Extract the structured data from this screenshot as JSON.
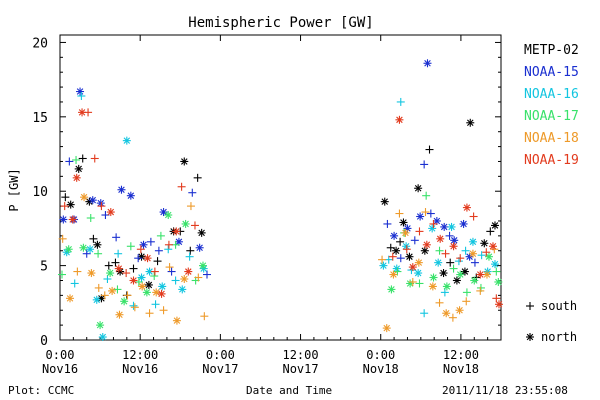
{
  "chart_data": {
    "type": "scatter",
    "title": "Hemispheric Power [GW]",
    "ylabel": "P [GW]",
    "xlabel": "Date and Time",
    "x_unit": "hours from 2011-11-16 00:00",
    "xlim": [
      0,
      66
    ],
    "ylim": [
      0,
      20.5
    ],
    "yticks": [
      0,
      5,
      10,
      15,
      20
    ],
    "xticks": [
      {
        "x": 0,
        "label": "0:00",
        "label2": "Nov16"
      },
      {
        "x": 12,
        "label": "12:00",
        "label2": "Nov16"
      },
      {
        "x": 24,
        "label": "0:00",
        "label2": "Nov17"
      },
      {
        "x": 36,
        "label": "12:00",
        "label2": "Nov17"
      },
      {
        "x": 48,
        "label": "0:00",
        "label2": "Nov18"
      },
      {
        "x": 60,
        "label": "12:00",
        "label2": "Nov18"
      }
    ],
    "grid": false,
    "legend_position": "right",
    "symbol_legend": [
      {
        "marker": "+",
        "label": "south"
      },
      {
        "marker": "*",
        "label": "north"
      }
    ],
    "series": [
      {
        "name": "METP-02",
        "color": "#000000",
        "points": [
          [
            0.8,
            9.6,
            "+"
          ],
          [
            1.6,
            9.1,
            "*"
          ],
          [
            2.8,
            11.5,
            "*"
          ],
          [
            3.4,
            12.2,
            "+"
          ],
          [
            4.4,
            9.3,
            "*"
          ],
          [
            5.0,
            6.8,
            "+"
          ],
          [
            5.6,
            6.4,
            "*"
          ],
          [
            6.2,
            2.8,
            "*"
          ],
          [
            7.3,
            5.0,
            "+"
          ],
          [
            8.3,
            5.2,
            "+"
          ],
          [
            9.0,
            4.6,
            "*"
          ],
          [
            10.0,
            3.0,
            "+"
          ],
          [
            11.0,
            4.8,
            "+"
          ],
          [
            12.2,
            5.6,
            "*"
          ],
          [
            13.3,
            3.7,
            "*"
          ],
          [
            14.6,
            5.3,
            "+"
          ],
          [
            17.0,
            7.3,
            "*"
          ],
          [
            18.0,
            7.3,
            "+"
          ],
          [
            18.6,
            12.0,
            "*"
          ],
          [
            19.5,
            6.0,
            "+"
          ],
          [
            20.6,
            10.9,
            "+"
          ],
          [
            21.2,
            7.2,
            "*"
          ],
          [
            48.6,
            9.3,
            "*"
          ],
          [
            49.5,
            6.2,
            "+"
          ],
          [
            50.3,
            6.0,
            "*"
          ],
          [
            50.9,
            6.6,
            "+"
          ],
          [
            51.4,
            7.9,
            "*"
          ],
          [
            52.3,
            5.6,
            "*"
          ],
          [
            53.6,
            10.2,
            "*"
          ],
          [
            54.6,
            6.0,
            "*"
          ],
          [
            55.3,
            12.8,
            "+"
          ],
          [
            57.4,
            4.5,
            "*"
          ],
          [
            58.4,
            5.2,
            "+"
          ],
          [
            59.4,
            4.0,
            "*"
          ],
          [
            60.6,
            4.6,
            "*"
          ],
          [
            61.4,
            14.6,
            "*"
          ],
          [
            62.3,
            4.2,
            "+"
          ],
          [
            63.5,
            6.5,
            "*"
          ],
          [
            64.4,
            7.3,
            "+"
          ],
          [
            65.1,
            7.7,
            "*"
          ]
        ]
      },
      {
        "name": "NOAA-15",
        "color": "#1a2fd0",
        "points": [
          [
            0.5,
            8.1,
            "*"
          ],
          [
            1.4,
            12.0,
            "+"
          ],
          [
            2.1,
            8.1,
            "*"
          ],
          [
            3.0,
            16.7,
            "*"
          ],
          [
            4.0,
            5.8,
            "+"
          ],
          [
            4.9,
            9.4,
            "*"
          ],
          [
            6.1,
            9.2,
            "*"
          ],
          [
            6.8,
            8.4,
            "+"
          ],
          [
            8.4,
            6.9,
            "+"
          ],
          [
            9.2,
            10.1,
            "*"
          ],
          [
            10.6,
            9.7,
            "*"
          ],
          [
            11.7,
            5.5,
            "+"
          ],
          [
            12.5,
            6.4,
            "*"
          ],
          [
            13.6,
            6.6,
            "+"
          ],
          [
            14.8,
            6.0,
            "+"
          ],
          [
            15.5,
            8.6,
            "*"
          ],
          [
            16.7,
            4.6,
            "+"
          ],
          [
            17.8,
            6.6,
            "*"
          ],
          [
            19.8,
            9.9,
            "+"
          ],
          [
            20.9,
            6.2,
            "*"
          ],
          [
            22.0,
            4.4,
            "+"
          ],
          [
            49.0,
            7.8,
            "+"
          ],
          [
            50.0,
            7.0,
            "*"
          ],
          [
            51.0,
            5.5,
            "+"
          ],
          [
            52.0,
            7.5,
            "*"
          ],
          [
            53.1,
            6.7,
            "+"
          ],
          [
            53.9,
            8.3,
            "*"
          ],
          [
            54.5,
            11.8,
            "+"
          ],
          [
            55.0,
            18.6,
            "*"
          ],
          [
            55.5,
            8.5,
            "+"
          ],
          [
            56.4,
            8.0,
            "*"
          ],
          [
            57.5,
            7.6,
            "*"
          ],
          [
            58.3,
            7.0,
            "+"
          ],
          [
            59.0,
            6.7,
            "*"
          ],
          [
            60.4,
            7.8,
            "*"
          ],
          [
            61.3,
            5.6,
            "*"
          ],
          [
            62.1,
            5.2,
            "+"
          ]
        ]
      },
      {
        "name": "NOAA-16",
        "color": "#12c5e0",
        "points": [
          [
            1.0,
            5.9,
            "*"
          ],
          [
            2.2,
            3.8,
            "+"
          ],
          [
            3.2,
            16.4,
            "+"
          ],
          [
            4.5,
            6.1,
            "*"
          ],
          [
            5.5,
            2.7,
            "*"
          ],
          [
            6.4,
            0.2,
            "*"
          ],
          [
            7.1,
            4.1,
            "+"
          ],
          [
            8.7,
            5.8,
            "+"
          ],
          [
            10.0,
            13.4,
            "*"
          ],
          [
            11.0,
            2.3,
            "+"
          ],
          [
            12.2,
            4.2,
            "*"
          ],
          [
            13.4,
            4.6,
            "*"
          ],
          [
            14.3,
            2.4,
            "+"
          ],
          [
            15.3,
            3.6,
            "*"
          ],
          [
            16.2,
            6.1,
            "+"
          ],
          [
            17.3,
            4.0,
            "+"
          ],
          [
            18.3,
            3.4,
            "*"
          ],
          [
            19.4,
            5.6,
            "+"
          ],
          [
            21.5,
            4.8,
            "*"
          ],
          [
            48.4,
            5.0,
            "*"
          ],
          [
            49.2,
            5.4,
            "+"
          ],
          [
            50.4,
            4.8,
            "*"
          ],
          [
            51.0,
            16.0,
            "+"
          ],
          [
            51.8,
            6.3,
            "*"
          ],
          [
            52.6,
            4.7,
            "+"
          ],
          [
            53.6,
            4.5,
            "*"
          ],
          [
            54.5,
            1.8,
            "+"
          ],
          [
            55.7,
            7.5,
            "*"
          ],
          [
            56.6,
            5.2,
            "*"
          ],
          [
            57.6,
            3.2,
            "+"
          ],
          [
            58.6,
            7.6,
            "*"
          ],
          [
            59.7,
            5.3,
            "+"
          ],
          [
            60.7,
            6.0,
            "+"
          ],
          [
            61.8,
            6.6,
            "*"
          ],
          [
            63.1,
            5.7,
            "+"
          ],
          [
            64.0,
            4.6,
            "*"
          ],
          [
            65.1,
            5.1,
            "*"
          ]
        ]
      },
      {
        "name": "NOAA-17",
        "color": "#38e26a",
        "points": [
          [
            0.3,
            4.4,
            "+"
          ],
          [
            1.3,
            6.1,
            "*"
          ],
          [
            2.4,
            12.1,
            "+"
          ],
          [
            3.5,
            6.2,
            "*"
          ],
          [
            4.6,
            8.2,
            "+"
          ],
          [
            5.7,
            5.8,
            "+"
          ],
          [
            6.0,
            1.0,
            "*"
          ],
          [
            7.5,
            4.5,
            "*"
          ],
          [
            8.6,
            3.4,
            "+"
          ],
          [
            9.6,
            2.6,
            "*"
          ],
          [
            10.6,
            6.3,
            "+"
          ],
          [
            11.8,
            3.9,
            "+"
          ],
          [
            13.0,
            3.2,
            "*"
          ],
          [
            14.1,
            4.3,
            "+"
          ],
          [
            15.1,
            7.0,
            "+"
          ],
          [
            16.2,
            8.4,
            "*"
          ],
          [
            17.3,
            6.4,
            "+"
          ],
          [
            18.8,
            7.8,
            "*"
          ],
          [
            20.3,
            4.0,
            "+"
          ],
          [
            21.4,
            5.0,
            "*"
          ],
          [
            49.6,
            3.4,
            "*"
          ],
          [
            50.5,
            4.6,
            "+"
          ],
          [
            51.5,
            7.2,
            "+"
          ],
          [
            52.4,
            3.8,
            "*"
          ],
          [
            53.8,
            3.8,
            "+"
          ],
          [
            54.8,
            9.7,
            "+"
          ],
          [
            55.9,
            4.2,
            "*"
          ],
          [
            56.8,
            6.0,
            "+"
          ],
          [
            57.9,
            3.6,
            "*"
          ],
          [
            58.9,
            4.8,
            "+"
          ],
          [
            59.9,
            4.4,
            "*"
          ],
          [
            60.9,
            3.2,
            "+"
          ],
          [
            62.0,
            4.0,
            "*"
          ],
          [
            63.0,
            3.5,
            "+"
          ],
          [
            64.2,
            5.6,
            "*"
          ],
          [
            65.3,
            4.6,
            "+"
          ],
          [
            65.6,
            3.9,
            "*"
          ]
        ]
      },
      {
        "name": "NOAA-18",
        "color": "#ee9a2a",
        "points": [
          [
            0.4,
            6.8,
            "+"
          ],
          [
            1.5,
            2.8,
            "*"
          ],
          [
            2.6,
            4.6,
            "+"
          ],
          [
            3.6,
            9.6,
            "*"
          ],
          [
            4.7,
            4.5,
            "*"
          ],
          [
            5.8,
            3.5,
            "+"
          ],
          [
            6.7,
            3.0,
            "+"
          ],
          [
            7.8,
            3.3,
            "*"
          ],
          [
            8.9,
            1.7,
            "*"
          ],
          [
            10.1,
            3.0,
            "+"
          ],
          [
            11.2,
            2.2,
            "+"
          ],
          [
            12.3,
            3.6,
            "*"
          ],
          [
            13.4,
            1.8,
            "+"
          ],
          [
            14.4,
            3.2,
            "*"
          ],
          [
            15.5,
            2.0,
            "+"
          ],
          [
            16.4,
            4.9,
            "+"
          ],
          [
            17.5,
            1.3,
            "*"
          ],
          [
            18.6,
            4.1,
            "*"
          ],
          [
            19.6,
            9.0,
            "+"
          ],
          [
            20.7,
            4.2,
            "+"
          ],
          [
            21.6,
            1.6,
            "+"
          ],
          [
            48.2,
            5.4,
            "+"
          ],
          [
            48.9,
            0.8,
            "*"
          ],
          [
            49.9,
            4.4,
            "*"
          ],
          [
            50.8,
            8.5,
            "+"
          ],
          [
            51.7,
            7.2,
            "*"
          ],
          [
            52.8,
            3.9,
            "+"
          ],
          [
            53.7,
            5.2,
            "*"
          ],
          [
            54.7,
            8.6,
            "+"
          ],
          [
            55.8,
            3.6,
            "*"
          ],
          [
            56.8,
            2.5,
            "+"
          ],
          [
            57.8,
            1.8,
            "*"
          ],
          [
            58.8,
            1.5,
            "+"
          ],
          [
            59.8,
            2.0,
            "*"
          ],
          [
            60.8,
            2.6,
            "+"
          ],
          [
            61.8,
            5.8,
            "*"
          ],
          [
            62.9,
            3.3,
            "+"
          ],
          [
            63.9,
            4.4,
            "*"
          ],
          [
            65.0,
            6.1,
            "+"
          ]
        ]
      },
      {
        "name": "NOAA-19",
        "color": "#e23b1e",
        "points": [
          [
            0.7,
            9.0,
            "+"
          ],
          [
            1.9,
            8.1,
            "*"
          ],
          [
            2.5,
            10.9,
            "*"
          ],
          [
            3.3,
            15.3,
            "*"
          ],
          [
            4.2,
            15.3,
            "+"
          ],
          [
            5.2,
            12.2,
            "+"
          ],
          [
            6.2,
            9.0,
            "+"
          ],
          [
            7.6,
            8.6,
            "*"
          ],
          [
            8.8,
            4.8,
            "*"
          ],
          [
            9.9,
            4.5,
            "+"
          ],
          [
            11.0,
            4.0,
            "*"
          ],
          [
            12.1,
            6.1,
            "+"
          ],
          [
            13.1,
            5.5,
            "*"
          ],
          [
            14.2,
            4.6,
            "+"
          ],
          [
            15.2,
            3.1,
            "*"
          ],
          [
            16.3,
            6.4,
            "+"
          ],
          [
            17.4,
            7.3,
            "*"
          ],
          [
            18.2,
            10.3,
            "+"
          ],
          [
            19.2,
            4.6,
            "*"
          ],
          [
            20.2,
            7.7,
            "+"
          ],
          [
            49.8,
            5.6,
            "+"
          ],
          [
            50.8,
            14.8,
            "*"
          ],
          [
            51.9,
            6.1,
            "+"
          ],
          [
            52.8,
            4.9,
            "*"
          ],
          [
            53.8,
            7.3,
            "+"
          ],
          [
            54.9,
            6.4,
            "*"
          ],
          [
            55.9,
            7.8,
            "+"
          ],
          [
            56.9,
            6.8,
            "*"
          ],
          [
            57.7,
            5.8,
            "+"
          ],
          [
            58.9,
            6.3,
            "*"
          ],
          [
            59.9,
            5.5,
            "+"
          ],
          [
            60.9,
            8.9,
            "*"
          ],
          [
            61.9,
            8.3,
            "+"
          ],
          [
            62.9,
            4.4,
            "*"
          ],
          [
            63.8,
            5.9,
            "+"
          ],
          [
            64.8,
            6.3,
            "*"
          ],
          [
            65.3,
            2.8,
            "+"
          ],
          [
            65.7,
            2.4,
            "*"
          ]
        ]
      }
    ]
  },
  "footer": {
    "left": "Plot: CCMC",
    "center": "Date and Time",
    "right": "2011/11/18 23:55:08"
  }
}
